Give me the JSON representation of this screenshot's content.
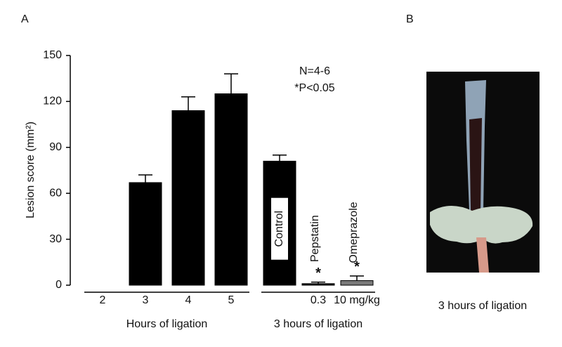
{
  "panel_labels": [
    "A",
    "B"
  ],
  "chart_data": {
    "type": "bar",
    "ylabel": "Lesion score (mm²)",
    "ylim": [
      0,
      150
    ],
    "yticks": [
      0,
      30,
      60,
      90,
      120,
      150
    ],
    "annotations": [
      "N=4-6",
      "*P<0.05"
    ],
    "groups": [
      {
        "label": "Hours of ligation",
        "categories": [
          "2",
          "3",
          "4",
          "5"
        ],
        "values": [
          0,
          67,
          114,
          125
        ],
        "errors": [
          0,
          5,
          9,
          13
        ],
        "colors": [
          "#000000",
          "#000000",
          "#000000",
          "#000000"
        ],
        "bar_labels": [
          null,
          null,
          null,
          null
        ],
        "significance": [
          null,
          null,
          null,
          null
        ]
      },
      {
        "label": "3 hours of ligation",
        "categories": [
          null,
          "0.3",
          "10 mg/kg"
        ],
        "values": [
          81,
          1,
          3
        ],
        "errors": [
          4,
          1,
          3
        ],
        "colors": [
          "#000000",
          "#000000",
          "#7a7a7a"
        ],
        "bar_labels": [
          "Control",
          "Pepstatin",
          "Omeprazole"
        ],
        "significance": [
          null,
          "*",
          "*"
        ]
      }
    ]
  },
  "photo_caption": "3 hours of ligation"
}
